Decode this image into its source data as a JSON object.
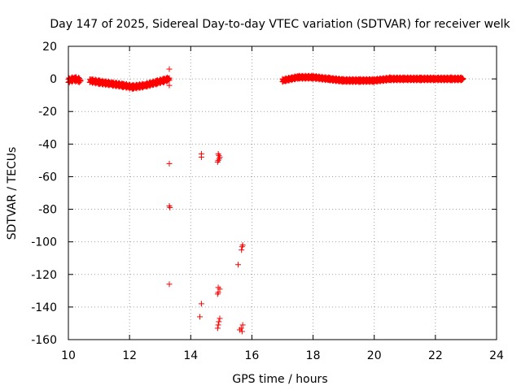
{
  "chart_data": {
    "type": "scatter",
    "title": "Day 147 of 2025, Sidereal Day-to-day VTEC variation (SDTVAR) for receiver welk",
    "xlabel": "GPS time / hours",
    "ylabel": "SDTVAR / TECUs",
    "xlim": [
      10,
      24
    ],
    "ylim": [
      -160,
      20
    ],
    "xticks": [
      10,
      12,
      14,
      16,
      18,
      20,
      22,
      24
    ],
    "yticks": [
      20,
      0,
      -20,
      -40,
      -60,
      -80,
      -100,
      -120,
      -140,
      -160
    ],
    "grid": true,
    "marker": "+",
    "color": "#ff0000",
    "dense_segments": [
      {
        "name": "segment-a",
        "x": [
          10.0,
          10.2,
          10.4
        ],
        "y": [
          -1,
          0,
          -1
        ],
        "spread": 3
      },
      {
        "name": "segment-b",
        "x": [
          10.7,
          11.0,
          11.4,
          11.8,
          12.1,
          12.5,
          12.9,
          13.1,
          13.3
        ],
        "y": [
          -1,
          -2,
          -3,
          -4,
          -5,
          -4,
          -2,
          -1,
          0
        ],
        "spread": 2.5
      },
      {
        "name": "segment-c",
        "x": [
          17.0,
          17.5,
          18.0,
          18.5,
          19.0,
          19.5,
          20.0,
          20.5,
          21.0,
          21.5,
          22.0,
          22.5,
          22.9
        ],
        "y": [
          -1,
          1,
          1,
          0,
          -1,
          -1,
          -1,
          0,
          0,
          0,
          0,
          0,
          0
        ],
        "spread": 2
      }
    ],
    "points": [
      {
        "x": 13.3,
        "y": 6
      },
      {
        "x": 13.3,
        "y": -4
      },
      {
        "x": 13.3,
        "y": -52
      },
      {
        "x": 13.3,
        "y": -78
      },
      {
        "x": 13.32,
        "y": -79
      },
      {
        "x": 13.3,
        "y": -126
      },
      {
        "x": 14.35,
        "y": -46
      },
      {
        "x": 14.35,
        "y": -48
      },
      {
        "x": 14.9,
        "y": -46
      },
      {
        "x": 14.92,
        "y": -47
      },
      {
        "x": 14.95,
        "y": -48
      },
      {
        "x": 14.9,
        "y": -50
      },
      {
        "x": 14.88,
        "y": -51
      },
      {
        "x": 14.93,
        "y": -49
      },
      {
        "x": 14.35,
        "y": -138
      },
      {
        "x": 14.3,
        "y": -146
      },
      {
        "x": 14.9,
        "y": -128
      },
      {
        "x": 14.95,
        "y": -129
      },
      {
        "x": 14.9,
        "y": -131
      },
      {
        "x": 14.88,
        "y": -132
      },
      {
        "x": 14.95,
        "y": -147
      },
      {
        "x": 14.92,
        "y": -149
      },
      {
        "x": 14.9,
        "y": -151
      },
      {
        "x": 14.88,
        "y": -153
      },
      {
        "x": 15.55,
        "y": -114
      },
      {
        "x": 15.7,
        "y": -102
      },
      {
        "x": 15.68,
        "y": -103
      },
      {
        "x": 15.66,
        "y": -105
      },
      {
        "x": 15.7,
        "y": -151
      },
      {
        "x": 15.65,
        "y": -153
      },
      {
        "x": 15.6,
        "y": -154
      },
      {
        "x": 15.68,
        "y": -155
      }
    ]
  }
}
